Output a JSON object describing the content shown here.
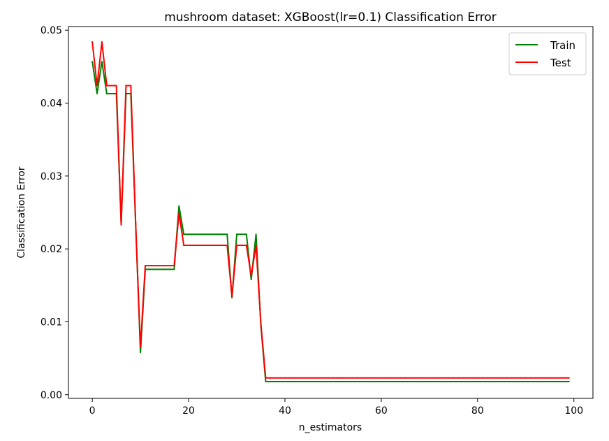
{
  "chart_data": {
    "type": "line",
    "title": "mushroom dataset: XGBoost(lr=0.1) Classification Error",
    "xlabel": "n_estimators",
    "ylabel": "Classification Error",
    "xlim": [
      -4.95,
      103.95
    ],
    "ylim": [
      -0.0005,
      0.0505
    ],
    "xticks": [
      0,
      20,
      40,
      60,
      80,
      100
    ],
    "xtick_labels": [
      "0",
      "20",
      "40",
      "60",
      "80",
      "100"
    ],
    "yticks": [
      0.0,
      0.01,
      0.02,
      0.03,
      0.04,
      0.05
    ],
    "ytick_labels": [
      "0.00",
      "0.01",
      "0.02",
      "0.03",
      "0.04",
      "0.05"
    ],
    "grid": false,
    "legend_position": "top-right",
    "series": [
      {
        "name": "Train",
        "color": "#008000",
        "x": [
          0,
          1,
          2,
          3,
          4,
          5,
          6,
          7,
          8,
          9,
          10,
          11,
          12,
          13,
          14,
          15,
          16,
          17,
          18,
          19,
          20,
          21,
          22,
          23,
          24,
          25,
          26,
          27,
          28,
          29,
          30,
          31,
          32,
          33,
          34,
          35,
          36,
          37,
          38,
          39,
          40,
          41,
          42,
          43,
          44,
          45,
          46,
          47,
          48,
          49,
          50,
          51,
          52,
          53,
          54,
          55,
          56,
          57,
          58,
          59,
          60,
          61,
          62,
          63,
          64,
          65,
          66,
          67,
          68,
          69,
          70,
          71,
          72,
          73,
          74,
          75,
          76,
          77,
          78,
          79,
          80,
          81,
          82,
          83,
          84,
          85,
          86,
          87,
          88,
          89,
          90,
          91,
          92,
          93,
          94,
          95,
          96,
          97,
          98,
          99
        ],
        "y": [
          0.0457,
          0.0413,
          0.0457,
          0.0413,
          0.0413,
          0.0413,
          0.0235,
          0.0413,
          0.0413,
          0.0235,
          0.0058,
          0.0172,
          0.0172,
          0.0172,
          0.0172,
          0.0172,
          0.0172,
          0.0172,
          0.0259,
          0.022,
          0.022,
          0.022,
          0.022,
          0.022,
          0.022,
          0.022,
          0.022,
          0.022,
          0.022,
          0.0133,
          0.022,
          0.022,
          0.022,
          0.0158,
          0.022,
          0.0095,
          0.0018,
          0.0018,
          0.0018,
          0.0018,
          0.0018,
          0.0018,
          0.0018,
          0.0018,
          0.0018,
          0.0018,
          0.0018,
          0.0018,
          0.0018,
          0.0018,
          0.0018,
          0.0018,
          0.0018,
          0.0018,
          0.0018,
          0.0018,
          0.0018,
          0.0018,
          0.0018,
          0.0018,
          0.0018,
          0.0018,
          0.0018,
          0.0018,
          0.0018,
          0.0018,
          0.0018,
          0.0018,
          0.0018,
          0.0018,
          0.0018,
          0.0018,
          0.0018,
          0.0018,
          0.0018,
          0.0018,
          0.0018,
          0.0018,
          0.0018,
          0.0018,
          0.0018,
          0.0018,
          0.0018,
          0.0018,
          0.0018,
          0.0018,
          0.0018,
          0.0018,
          0.0018,
          0.0018,
          0.0018,
          0.0018,
          0.0018,
          0.0018,
          0.0018,
          0.0018,
          0.0018,
          0.0018,
          0.0018,
          0.0018
        ]
      },
      {
        "name": "Test",
        "color": "#ff0000",
        "x": [
          0,
          1,
          2,
          3,
          4,
          5,
          6,
          7,
          8,
          9,
          10,
          11,
          12,
          13,
          14,
          15,
          16,
          17,
          18,
          19,
          20,
          21,
          22,
          23,
          24,
          25,
          26,
          27,
          28,
          29,
          30,
          31,
          32,
          33,
          34,
          35,
          36,
          37,
          38,
          39,
          40,
          41,
          42,
          43,
          44,
          45,
          46,
          47,
          48,
          49,
          50,
          51,
          52,
          53,
          54,
          55,
          56,
          57,
          58,
          59,
          60,
          61,
          62,
          63,
          64,
          65,
          66,
          67,
          68,
          69,
          70,
          71,
          72,
          73,
          74,
          75,
          76,
          77,
          78,
          79,
          80,
          81,
          82,
          83,
          84,
          85,
          86,
          87,
          88,
          89,
          90,
          91,
          92,
          93,
          94,
          95,
          96,
          97,
          98,
          99
        ],
        "y": [
          0.0484,
          0.0424,
          0.0484,
          0.0424,
          0.0424,
          0.0424,
          0.0233,
          0.0424,
          0.0424,
          0.0236,
          0.0065,
          0.0177,
          0.0177,
          0.0177,
          0.0177,
          0.0177,
          0.0177,
          0.0177,
          0.0249,
          0.0205,
          0.0205,
          0.0205,
          0.0205,
          0.0205,
          0.0205,
          0.0205,
          0.0205,
          0.0205,
          0.0205,
          0.0135,
          0.0205,
          0.0205,
          0.0205,
          0.0163,
          0.0205,
          0.0098,
          0.0023,
          0.0023,
          0.0023,
          0.0023,
          0.0023,
          0.0023,
          0.0023,
          0.0023,
          0.0023,
          0.0023,
          0.0023,
          0.0023,
          0.0023,
          0.0023,
          0.0023,
          0.0023,
          0.0023,
          0.0023,
          0.0023,
          0.0023,
          0.0023,
          0.0023,
          0.0023,
          0.0023,
          0.0023,
          0.0023,
          0.0023,
          0.0023,
          0.0023,
          0.0023,
          0.0023,
          0.0023,
          0.0023,
          0.0023,
          0.0023,
          0.0023,
          0.0023,
          0.0023,
          0.0023,
          0.0023,
          0.0023,
          0.0023,
          0.0023,
          0.0023,
          0.0023,
          0.0023,
          0.0023,
          0.0023,
          0.0023,
          0.0023,
          0.0023,
          0.0023,
          0.0023,
          0.0023,
          0.0023,
          0.0023,
          0.0023,
          0.0023,
          0.0023,
          0.0023,
          0.0023,
          0.0023,
          0.0023,
          0.0023
        ]
      }
    ]
  }
}
